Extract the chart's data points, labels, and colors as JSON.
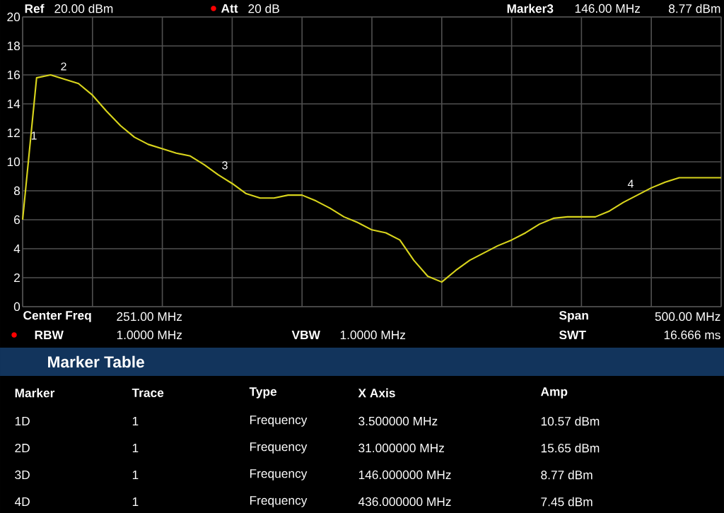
{
  "chart_data": {
    "type": "line",
    "color": "#d8d41c",
    "categories": [
      null,
      null,
      null,
      null,
      null,
      null,
      null,
      null,
      null,
      null,
      null,
      null,
      null,
      null,
      null,
      null,
      null,
      null,
      null,
      null,
      null,
      null,
      null,
      null,
      null,
      null,
      null,
      null,
      null,
      null,
      null,
      null,
      null,
      null,
      null,
      null,
      null,
      null,
      null,
      null,
      null,
      null,
      null,
      null,
      null,
      null,
      null,
      null,
      null,
      null,
      null
    ],
    "values": [
      6.0,
      15.8,
      16.0,
      15.7,
      15.4,
      14.6,
      13.5,
      12.5,
      11.7,
      11.2,
      10.9,
      10.6,
      10.4,
      9.8,
      9.1,
      8.5,
      7.8,
      7.5,
      7.5,
      7.7,
      7.7,
      7.3,
      6.8,
      6.2,
      5.8,
      5.3,
      5.1,
      4.6,
      3.2,
      2.1,
      1.7,
      2.5,
      3.2,
      3.7,
      4.2,
      4.6,
      5.1,
      5.7,
      6.1,
      6.2,
      6.2,
      6.2,
      6.6,
      7.2,
      7.7,
      8.2,
      8.6,
      8.9,
      8.9,
      8.9,
      8.9
    ],
    "ylim": [
      0,
      20
    ],
    "yticks": [
      0,
      2,
      4,
      6,
      8,
      10,
      12,
      14,
      16,
      18,
      20
    ],
    "grid": true,
    "tick_labels": "y",
    "annotations": [
      "Ref",
      "20.00 dBm",
      "Att",
      "20 dB",
      "Marker3",
      "146.00 MHz",
      "8.77 dBm",
      "Center Freq",
      "251.00 MHz",
      "Span",
      "500.00 MHz",
      "RBW",
      "1.0000 MHz",
      "VBW",
      "1.0000 MHz",
      "SWT",
      "16.666 ms",
      "Marker Table",
      "Marker",
      "Trace",
      "Type",
      "X Axis",
      "Amp",
      "1D",
      "1",
      "Frequency",
      "3.500000 MHz",
      "10.57 dBm",
      "2D",
      "1",
      "Frequency",
      "31.000000 MHz",
      "15.65 dBm",
      "3D",
      "1",
      "Frequency",
      "146.000000 MHz",
      "8.77 dBm",
      "4D",
      "1",
      "Frequency",
      "436.000000 MHz",
      "7.45 dBm",
      "1",
      "2",
      "3",
      "4"
    ]
  }
}
